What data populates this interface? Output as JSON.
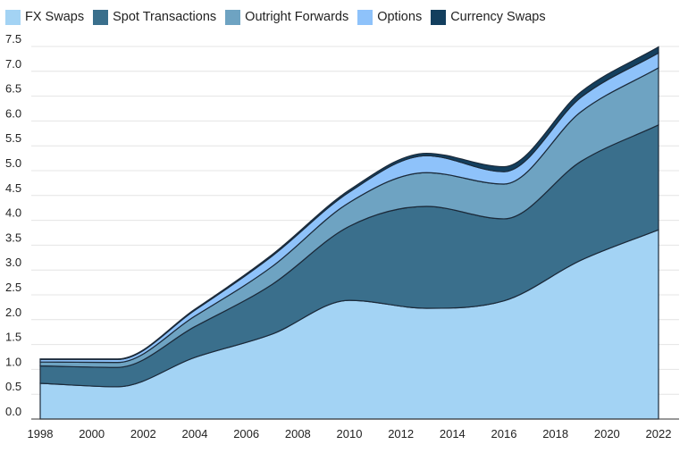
{
  "chart_data": {
    "type": "area",
    "stacked": true,
    "title": "",
    "xlabel": "",
    "ylabel": "",
    "x": [
      1998,
      2001,
      2004,
      2007,
      2010,
      2013,
      2016,
      2019,
      2022
    ],
    "x_ticks": [
      "1998",
      "2000",
      "2002",
      "2004",
      "2006",
      "2008",
      "2010",
      "2012",
      "2014",
      "2016",
      "2018",
      "2020",
      "2022"
    ],
    "y_ticks": [
      "0.0",
      "0.5",
      "1.0",
      "1.5",
      "2.0",
      "2.5",
      "3.0",
      "3.5",
      "4.0",
      "4.5",
      "5.0",
      "5.5",
      "6.0",
      "6.5",
      "7.0",
      "7.5"
    ],
    "ylim": [
      0,
      7.5
    ],
    "xlim": [
      1998,
      2022
    ],
    "grid": "horizontal",
    "legend_position": "top-left",
    "series": [
      {
        "name": "FX Swaps",
        "color": "#a3d3f4",
        "values": [
          0.72,
          0.65,
          1.24,
          1.71,
          2.39,
          2.23,
          2.38,
          3.2,
          3.81
        ]
      },
      {
        "name": "Spot Transactions",
        "color": "#3a6f8c",
        "values": [
          0.35,
          0.39,
          0.62,
          1.0,
          1.49,
          2.05,
          1.65,
          1.99,
          2.11
        ]
      },
      {
        "name": "Outright Forwards",
        "color": "#6ea3c2",
        "values": [
          0.08,
          0.1,
          0.21,
          0.36,
          0.48,
          0.68,
          0.7,
          1.0,
          1.15
        ]
      },
      {
        "name": "Options",
        "color": "#8ec2fa",
        "values": [
          0.05,
          0.06,
          0.12,
          0.21,
          0.21,
          0.34,
          0.25,
          0.29,
          0.3
        ]
      },
      {
        "name": "Currency Swaps",
        "color": "#133f5e",
        "values": [
          0.01,
          0.01,
          0.02,
          0.03,
          0.04,
          0.05,
          0.1,
          0.11,
          0.12
        ]
      }
    ]
  }
}
